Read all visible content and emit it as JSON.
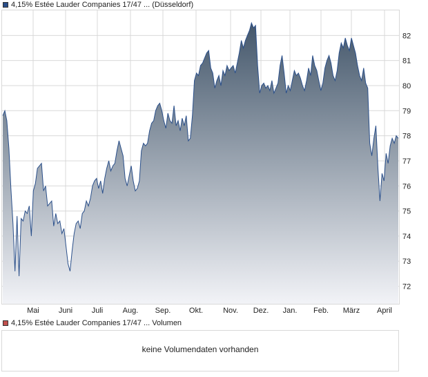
{
  "legend": {
    "price": "4,15% Estée Lauder Companies 17/47 ... (Düsseldorf)",
    "volume": "4,15% Estée Lauder Companies 17/47 ... Volumen"
  },
  "volume_panel": {
    "message": "keine Volumendaten vorhanden"
  },
  "colors": {
    "line": "#2a4f8a",
    "fill_top": "#44576b",
    "fill_bottom": "#f2f3f7",
    "grid": "#d8d8d8",
    "price_swatch": "#2a4f8a",
    "volume_swatch": "#c0504d"
  },
  "chart_data": {
    "type": "area",
    "title": "",
    "xlabel": "",
    "ylabel": "",
    "ylim": [
      71.3,
      83.0
    ],
    "y_ticks": [
      72,
      73,
      74,
      75,
      76,
      77,
      78,
      79,
      80,
      81,
      82
    ],
    "x_tick_labels": [
      "Mai",
      "Juni",
      "Juli",
      "Aug.",
      "Sep.",
      "Okt.",
      "Nov.",
      "Dez.",
      "Jan.",
      "Feb.",
      "März",
      "April"
    ],
    "grid": true,
    "series": [
      {
        "values": [
          78.8,
          79.0,
          78.6,
          77.5,
          75.9,
          74.5,
          72.6,
          74.8,
          72.4,
          74.7,
          74.6,
          75.0,
          74.9,
          75.2,
          74.0,
          75.8,
          76.1,
          76.7,
          76.8,
          76.9,
          75.8,
          76.0,
          75.2,
          75.3,
          75.4,
          74.4,
          74.9,
          74.5,
          74.6,
          74.1,
          74.3,
          73.6,
          72.9,
          72.6,
          73.4,
          74.1,
          74.5,
          74.6,
          74.3,
          74.9,
          75.0,
          75.4,
          75.2,
          75.5,
          76.0,
          76.2,
          76.3,
          75.9,
          76.2,
          75.7,
          76.3,
          76.7,
          77.0,
          76.6,
          76.8,
          76.9,
          77.4,
          77.8,
          77.5,
          77.2,
          76.3,
          76.0,
          76.4,
          76.8,
          76.2,
          75.8,
          75.9,
          76.2,
          77.4,
          77.7,
          77.6,
          77.7,
          78.2,
          78.5,
          78.6,
          79.0,
          79.2,
          79.3,
          79.0,
          78.6,
          78.3,
          78.9,
          78.6,
          78.5,
          79.2,
          78.4,
          78.6,
          78.2,
          78.7,
          78.4,
          78.8,
          77.8,
          77.9,
          78.8,
          80.2,
          80.5,
          80.4,
          80.8,
          80.9,
          81.1,
          81.3,
          81.4,
          80.7,
          80.5,
          79.9,
          80.2,
          80.4,
          80.0,
          80.6,
          80.4,
          80.8,
          80.6,
          80.7,
          80.8,
          80.5,
          80.9,
          81.3,
          81.8,
          81.5,
          81.8,
          82.0,
          82.2,
          82.5,
          82.3,
          82.4,
          80.8,
          79.7,
          80.0,
          80.1,
          79.9,
          80.0,
          79.8,
          80.2,
          79.7,
          79.9,
          80.1,
          80.8,
          81.2,
          80.5,
          79.7,
          80.0,
          79.8,
          80.2,
          80.6,
          80.4,
          80.5,
          80.3,
          80.0,
          79.8,
          80.2,
          80.7,
          80.4,
          81.2,
          80.8,
          80.6,
          80.2,
          79.8,
          80.1,
          80.7,
          81.0,
          81.2,
          80.9,
          80.4,
          80.2,
          80.6,
          81.3,
          81.7,
          81.5,
          81.9,
          81.6,
          81.4,
          81.9,
          81.6,
          81.3,
          80.8,
          80.4,
          80.2,
          80.7,
          80.1,
          79.9,
          77.7,
          77.2,
          77.9,
          78.4,
          76.7,
          75.4,
          76.5,
          76.2,
          77.3,
          76.9,
          77.6,
          77.9,
          77.7,
          78.0,
          77.9
        ]
      }
    ]
  }
}
